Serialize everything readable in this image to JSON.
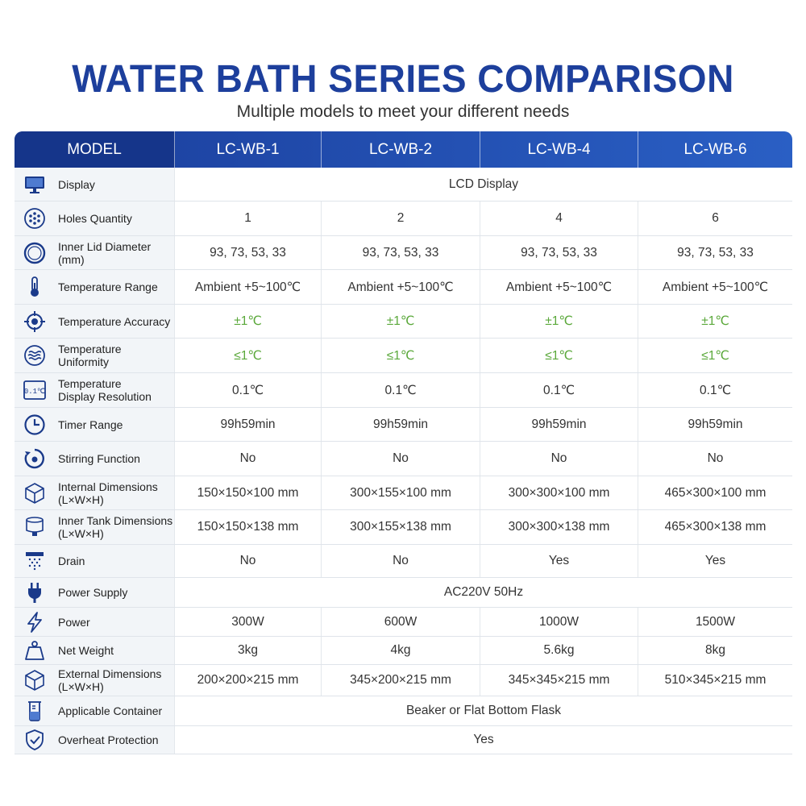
{
  "header": {
    "title": "WATER BATH SERIES COMPARISON",
    "subtitle": "Multiple models to meet your different needs"
  },
  "table": {
    "columns": [
      "MODEL",
      "LC-WB-1",
      "LC-WB-2",
      "LC-WB-4",
      "LC-WB-6"
    ],
    "rows": [
      {
        "label": "Display",
        "icon": "monitor-icon",
        "span": "LCD Display"
      },
      {
        "label": "Holes Quantity",
        "icon": "holes-icon",
        "values": [
          "1",
          "2",
          "4",
          "6"
        ]
      },
      {
        "label": "Inner Lid Diameter (mm)",
        "icon": "lid-icon",
        "values": [
          "93, 73, 53, 33",
          "93, 73, 53, 33",
          "93, 73, 53, 33",
          "93, 73, 53, 33"
        ]
      },
      {
        "label": "Temperature Range",
        "icon": "thermometer-icon",
        "values": [
          "Ambient +5~100℃",
          "Ambient +5~100℃",
          "Ambient +5~100℃",
          "Ambient +5~100℃"
        ]
      },
      {
        "label": "Temperature Accuracy",
        "icon": "target-icon",
        "values": [
          "±1℃",
          "±1℃",
          "±1℃",
          "±1℃"
        ],
        "highlight": true
      },
      {
        "label": "Temperature Uniformity",
        "icon": "waves-icon",
        "values": [
          "≤1℃",
          "≤1℃",
          "≤1℃",
          "≤1℃"
        ],
        "highlight": true
      },
      {
        "label": "Temperature\nDisplay Resolution",
        "icon": "resolution-icon",
        "icon_text": "0.1℃",
        "values": [
          "0.1℃",
          "0.1℃",
          "0.1℃",
          "0.1℃"
        ]
      },
      {
        "label": "Timer Range",
        "icon": "clock-icon",
        "values": [
          "99h59min",
          "99h59min",
          "99h59min",
          "99h59min"
        ]
      },
      {
        "label": "Stirring Function",
        "icon": "stirring-icon",
        "values": [
          "No",
          "No",
          "No",
          "No"
        ]
      },
      {
        "label": "Internal Dimensions\n(L×W×H)",
        "icon": "cube-icon",
        "values": [
          "150×150×100 mm",
          "300×155×100 mm",
          "300×300×100 mm",
          "465×300×100 mm"
        ]
      },
      {
        "label": "Inner Tank Dimensions\n(L×W×H)",
        "icon": "tank-icon",
        "values": [
          "150×150×138 mm",
          "300×155×138 mm",
          "300×300×138 mm",
          "465×300×138 mm"
        ]
      },
      {
        "label": "Drain",
        "icon": "drain-icon",
        "values": [
          "No",
          "No",
          "Yes",
          "Yes"
        ]
      },
      {
        "label": "Power Supply",
        "icon": "plug-icon",
        "span": "AC220V 50Hz"
      },
      {
        "label": "Power",
        "icon": "lightning-icon",
        "values": [
          "300W",
          "600W",
          "1000W",
          "1500W"
        ]
      },
      {
        "label": "Net Weight",
        "icon": "weight-icon",
        "values": [
          "3kg",
          "4kg",
          "5.6kg",
          "8kg"
        ]
      },
      {
        "label": "External Dimensions\n(L×W×H)",
        "icon": "box-icon",
        "values": [
          "200×200×215 mm",
          "345×200×215 mm",
          "345×345×215 mm",
          "510×345×215 mm"
        ]
      },
      {
        "label": "Applicable Container",
        "icon": "beaker-icon",
        "span": "Beaker or Flat Bottom Flask"
      },
      {
        "label": "Overheat Protection",
        "icon": "shield-icon",
        "span": "Yes"
      }
    ]
  },
  "colors": {
    "title": "#1d3f9c",
    "header_bg": "#1b3e9c",
    "highlight": "#5aa83a",
    "icon": "#1a3a8a"
  }
}
